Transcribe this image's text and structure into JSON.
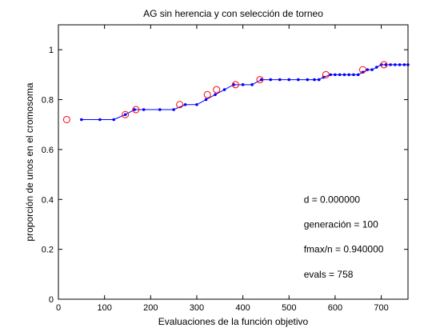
{
  "chart_data": {
    "type": "line",
    "title": "AG sin herencia y con selección de torneo",
    "xlabel": "Evaluaciones de la función objetivo",
    "ylabel": "proporción de unos en el cromosoma",
    "xlim": [
      0,
      758
    ],
    "ylim": [
      0,
      1.1
    ],
    "x_ticks": [
      0,
      100,
      200,
      300,
      400,
      500,
      600,
      700
    ],
    "y_ticks": [
      0,
      0.2,
      0.4,
      0.6,
      0.8,
      1
    ],
    "x_tick_labels": [
      "0",
      "100",
      "200",
      "300",
      "400",
      "500",
      "600",
      "700"
    ],
    "y_tick_labels": [
      "0",
      "0.2",
      "0.4",
      "0.6",
      "0.8",
      "1"
    ],
    "grid": false,
    "series": [
      {
        "style": "line-with-dots",
        "color": "#0000ff",
        "x": [
          50,
          90,
          120,
          145,
          165,
          185,
          220,
          250,
          275,
          300,
          320,
          340,
          360,
          380,
          400,
          420,
          440,
          460,
          480,
          500,
          520,
          540,
          555,
          565,
          575,
          590,
          600,
          610,
          620,
          630,
          640,
          650,
          660,
          670,
          680,
          690,
          700,
          710,
          720,
          730,
          740,
          750,
          758
        ],
        "y": [
          0.72,
          0.72,
          0.72,
          0.74,
          0.76,
          0.76,
          0.76,
          0.76,
          0.78,
          0.78,
          0.8,
          0.82,
          0.84,
          0.86,
          0.86,
          0.86,
          0.88,
          0.88,
          0.88,
          0.88,
          0.88,
          0.88,
          0.88,
          0.88,
          0.89,
          0.9,
          0.9,
          0.9,
          0.9,
          0.9,
          0.9,
          0.9,
          0.91,
          0.92,
          0.92,
          0.93,
          0.94,
          0.94,
          0.94,
          0.94,
          0.94,
          0.94,
          0.94
        ]
      },
      {
        "style": "circles",
        "color": "#ff0000",
        "x": [
          18,
          145,
          168,
          263,
          323,
          343,
          384,
          437,
          580,
          660,
          706
        ],
        "y": [
          0.72,
          0.74,
          0.76,
          0.78,
          0.82,
          0.84,
          0.86,
          0.88,
          0.9,
          0.92,
          0.94
        ]
      }
    ],
    "annotations": [
      "d = 0.000000",
      "generación = 100",
      "fmax/n = 0.940000",
      "evals = 758"
    ]
  }
}
